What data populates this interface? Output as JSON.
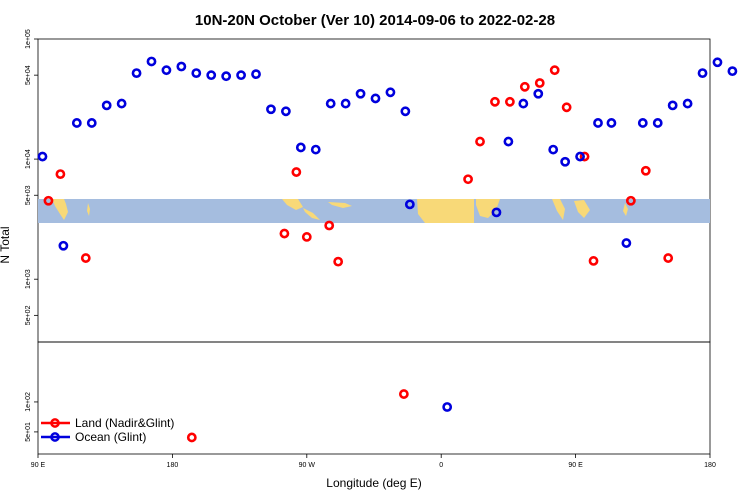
{
  "chart_data": {
    "type": "scatter",
    "title": "10N-20N October (Ver 10)   2014-09-06 to 2022-02-28",
    "xlabel": "Longitude (deg E)",
    "ylabel": "N Total",
    "x_ticks": [
      "90 E",
      "180",
      "90 W",
      "0",
      "90 E",
      "180"
    ],
    "x_tick_values": [
      90,
      180,
      270,
      360,
      450,
      540
    ],
    "xlim": [
      90,
      540
    ],
    "upper_panel": {
      "yscale": "log",
      "ylim": [
        300,
        100000
      ],
      "y_ticks": [
        "1e+05",
        "5e+04",
        "1e+04",
        "5e+03",
        "1e+03",
        "5e+02"
      ],
      "y_tick_values": [
        100000,
        50000,
        10000,
        5000,
        1000,
        500
      ]
    },
    "lower_panel": {
      "yscale": "log",
      "ylim": [
        30,
        400
      ],
      "y_ticks": [
        "1e+02",
        "5e+01"
      ],
      "y_tick_values": [
        100,
        50
      ]
    },
    "map_band": {
      "lat_range": "10N-20N",
      "ocean_color": "#a5bddf",
      "land_color": "#f8d978"
    },
    "legend": {
      "position": "bottom-left"
    },
    "series": [
      {
        "name": "Land (Nadir&Glint)",
        "color": "#ff0000",
        "upper_points": [
          [
            97,
            4500
          ],
          [
            105,
            7500
          ],
          [
            122,
            1500
          ],
          [
            255,
            2400
          ],
          [
            263,
            7800
          ],
          [
            270,
            2250
          ],
          [
            285,
            2800
          ],
          [
            291,
            1400
          ],
          [
            378,
            6800
          ],
          [
            386,
            14000
          ],
          [
            396,
            30000
          ],
          [
            406,
            30000
          ],
          [
            416,
            40000
          ],
          [
            426,
            43000
          ],
          [
            436,
            55000
          ],
          [
            444,
            27000
          ],
          [
            456,
            10500
          ],
          [
            462,
            1420
          ],
          [
            487,
            4500
          ],
          [
            497,
            8000
          ],
          [
            512,
            1500
          ]
        ],
        "lower_points": [
          [
            193,
            44
          ],
          [
            335,
            120
          ]
        ]
      },
      {
        "name": "Ocean (Glint)",
        "color": "#0000dd",
        "upper_points": [
          [
            93,
            10500
          ],
          [
            107,
            1900
          ],
          [
            116,
            20000
          ],
          [
            126,
            20000
          ],
          [
            136,
            28000
          ],
          [
            146,
            29000
          ],
          [
            156,
            52000
          ],
          [
            166,
            65000
          ],
          [
            176,
            55000
          ],
          [
            186,
            59000
          ],
          [
            196,
            52000
          ],
          [
            206,
            50000
          ],
          [
            216,
            49000
          ],
          [
            226,
            50000
          ],
          [
            236,
            51000
          ],
          [
            246,
            26000
          ],
          [
            256,
            25000
          ],
          [
            266,
            12500
          ],
          [
            276,
            12000
          ],
          [
            286,
            29000
          ],
          [
            296,
            29000
          ],
          [
            306,
            35000
          ],
          [
            316,
            32000
          ],
          [
            326,
            36000
          ],
          [
            336,
            25000
          ],
          [
            339,
            4200
          ],
          [
            397,
            3600
          ],
          [
            405,
            14000
          ],
          [
            415,
            29000
          ],
          [
            425,
            35000
          ],
          [
            435,
            12000
          ],
          [
            443,
            9500
          ],
          [
            453,
            10500
          ],
          [
            465,
            20000
          ],
          [
            474,
            20000
          ],
          [
            484,
            2000
          ],
          [
            495,
            20000
          ],
          [
            505,
            20000
          ],
          [
            515,
            28000
          ],
          [
            525,
            29000
          ],
          [
            535,
            52000
          ],
          [
            545,
            64000
          ],
          [
            555,
            54000
          ]
        ],
        "lower_points": [
          [
            364,
            89
          ]
        ]
      }
    ]
  }
}
